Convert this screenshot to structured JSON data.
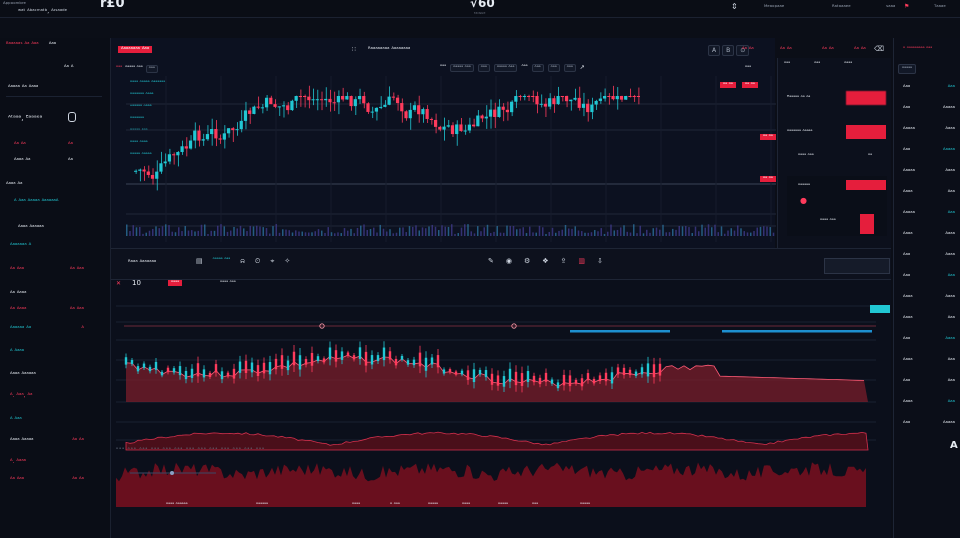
{
  "topbar": {
    "brand": "ᴬᵖᵖᵒᵒᵐᵇʳᵉ",
    "account_title": "ʷᵃᵗ ᴬᵇᵃᶜᵐᵃᵗᵇ, ᴬᶦˢᵃᵃᵈᵉ",
    "price_left": "r£0",
    "price_center": "√60",
    "price_center_sub": "ᵇᵃᵒᵃᵖᵖᵉ",
    "menu": [
      "ᴹᵉᵃᵒᵖᵃᵃᵉ",
      "ᴿᵃᵗᵃᵃᵃᵉᵉ",
      "ˢᵃᵃᵃ",
      "ᵀᵃᵃᵃᵉ"
    ]
  },
  "left": {
    "header_tag": "ᴮᵃᵃᵃᵃᵃˢ ᴬᵃ ᴬᵃᵃ",
    "header_val": "ᴬᵃᵃ",
    "row2": "ᴬᵃ ᴬ",
    "row3": "ᴬᵃᵃᵃᵃ ᴬᵃ ᴬᵃᵃᵃ",
    "section_title": "ᴬᵗᵃᵃᵃ, ᴱᵃᵃᵃᵉᵃ",
    "a_label": "ᴬᵃ ᴬᵃ",
    "a_val": "ᴬᵃ",
    "b_label": "ᴬᵃᵃᵃ ᴬᵃ",
    "c_label": "ᴬ ᴬᵃᵃ ᴬᵃᵃᵃᵃ ᴬᵃᵃᵃᵃᵃᴬ",
    "d_label": "ᴬᵃᵃᵃ ᴬᵃᵃᵃᵃᵃ",
    "rows": [
      {
        "label": "ᴬᵃᵃᵃᵃᵃᵃ ᴬ",
        "value": ""
      },
      {
        "label": "ᴬᵃ ᴬᵃᵃ",
        "value": "ᴬᵃ ᴬᵃᵃ"
      },
      {
        "label": "ᴬᵃ ᴬᵃᵃᵃ",
        "value": ""
      },
      {
        "label": "ᴬᵃ ᴬᵃᵃᵃ",
        "value": "ᴬᵃ ᴬᵃᵃ"
      },
      {
        "label": "ᴬᵃᵃᵃᵃᵃ ᴬᵃ",
        "value": "ᴬ"
      },
      {
        "label": "ᴬ ᴬᵃᵃᵃ",
        "value": ""
      },
      {
        "label": "ᴬᵃᵃᵃ ᴬᵃᵃᵃᵃᵃ",
        "value": ""
      },
      {
        "label": "ᴬ. ᴬᵃᵃ, ᴬᵃ",
        "value": ""
      },
      {
        "label": "ᴬ ᴬᵃᵃ",
        "value": ""
      },
      {
        "label": "ᴬᵃᵃᵃ ᴬᵃᵃᵃᵃ",
        "value": "ᴬᵃ ᴬᵃ"
      },
      {
        "label": "ᴬ. ᴬᵃᵃᵃ",
        "value": ""
      },
      {
        "label": "ᴬᵃ ᴬᵃᵃ",
        "value": "ᴬᵃ ᴬᵃ"
      }
    ]
  },
  "center": {
    "tab_red": "ᴬᵃᵃᵃᵃᵃᵃᵃ ᴬᵃᵃ",
    "title": "ᴿᵃᵃᵃᵃᵃᵃᵃᵃ ᴬᵃᵃᵃᵃᵃᵃᵃ",
    "toolbar_items": [
      "ᴬᵃᵃ",
      "ᴬᵃᵃᵃᵃ ᴬᵃᵃ",
      "ᴬᵃᵃ",
      "ᴬᵃᵃᵃᵃ ᴬᵃᵃ",
      "ᴬᵃᵃ"
    ],
    "price_tags": [
      "ᴬᵃ ᴬᵃ",
      "ᴬᵃ ᴬᵃ",
      "ᴬᵃ ᴬᵃ",
      "ᴬᵃ ᴬᵃ"
    ],
    "legend_rows": [
      "ᴬᵃᵃᵃ ᴬᵃᵃᵃᵃ ᴬᵃᵃᵃᵃᵃᵃ",
      "ᴬᵃᵃᵃᵃᵃᵃ ᴬᵃᵃᵃ",
      "ᴬᵃᵃᵃᵃᵃ ᴬᵃᵃᵃ",
      "ᴬᵃᵃᵃᵃᵃᵃ",
      "ᴬᵃᵃᵃᵃ ᴬᵃᵃ",
      "ᴬᵃᵃᵃ ᴬᵃᵃᵃ",
      "ᴬᵃᵃᵃᵃ ᴬᵃᵃᵃᵃ"
    ],
    "mid_toolbar_label": "ᴿᵃᵃᵃ ᴬᵃᵃᵃᵃᵃᵃ",
    "lower_tab_num": "10",
    "lower_tab_red": "ᴬᵃᵃᵃ",
    "lower_tab_text": "ᴬᵃᵃᵃ ᴬᵃᵃ",
    "bottom_ticks": "ᴬᵃᵃ ᴬᵃᵃ ᴬᵃᵃ ᴬᵃᵃ ᴬᵃᵃ ᴬᵃᵃ ᴬᵃᵃ ᴬᵃᵃ ᴬᵃᵃ ᴬᵃᵃ ᴬᵃᵃ ᴬᵃᵃ ᴬᵃᵃ",
    "footer_labels": [
      "ᴬᵃᵃᵃ ᴬᵃᵃᵃᵃᵃ",
      "ᴬᵃᵃᵃᵃᵃ",
      "ᴬᵃᵃᵃ",
      "ᴬ ᴬᵃᵃ",
      "ᴬᵃᵃᵃᵃ",
      "ᴬᵃᵃᵃ",
      "ᴬᵃᵃᵃᵃ",
      "ᴬᵃᵃ",
      "ᴬᵃᵃᵃᵃ"
    ]
  },
  "right_mid": {
    "tabs": [
      "ᴬᵃᵃ",
      "ᴬᵃᵃ",
      "ᴬᵃᵃᵃ"
    ],
    "rows": [
      {
        "label": "ᴿᵃᵃᵃᵃᵃ ᴬᵃ ᴬᵃ",
        "value": ""
      },
      {
        "label": "ᴬᵃᵃᵃᵃᵃᵃ ᴬᵃᵃᵃᵃ",
        "value": ""
      },
      {
        "label": "ᴬᵃᵃᵃ ᴬᵃᵃ",
        "value": "ᴬᵃ"
      },
      {
        "label": "ᴬᵃᵃᵃᵃᵃ",
        "value": ""
      }
    ]
  },
  "right": {
    "header": "ᴬ ᴬᵃᵃᵃᵃᵃᵃᵃᵃ ᴬᵃᵃ",
    "tab": "ᴬᵃᵃᵃᵃ",
    "rows": [
      "ᴬᵃᵃ",
      "ᴬᵃᵃ",
      "ᴬᵃᵃᵃᵃ",
      "ᴬᵃᵃ",
      "ᴬᵃᵃᵃᵃ",
      "ᴬᵃᵃᵃ",
      "ᴬᵃᵃᵃᵃ",
      "ᴬᵃᵃᵃ",
      "ᴬᵃᵃ",
      "ᴬᵃᵃ",
      "ᴬᵃᵃᵃ",
      "ᴬᵃᵃᵃ",
      "ᴬᵃᵃ",
      "ᴬᵃᵃᵃ",
      "ᴬᵃᵃ",
      "ᴬᵃᵃᵃ",
      "ᴬᵃᵃ"
    ],
    "big_a": "A"
  },
  "chart_data": {
    "type": "candlestick",
    "candles_up_color": "#21c7d3",
    "candles_down_color": "#ff3b5c"
  }
}
